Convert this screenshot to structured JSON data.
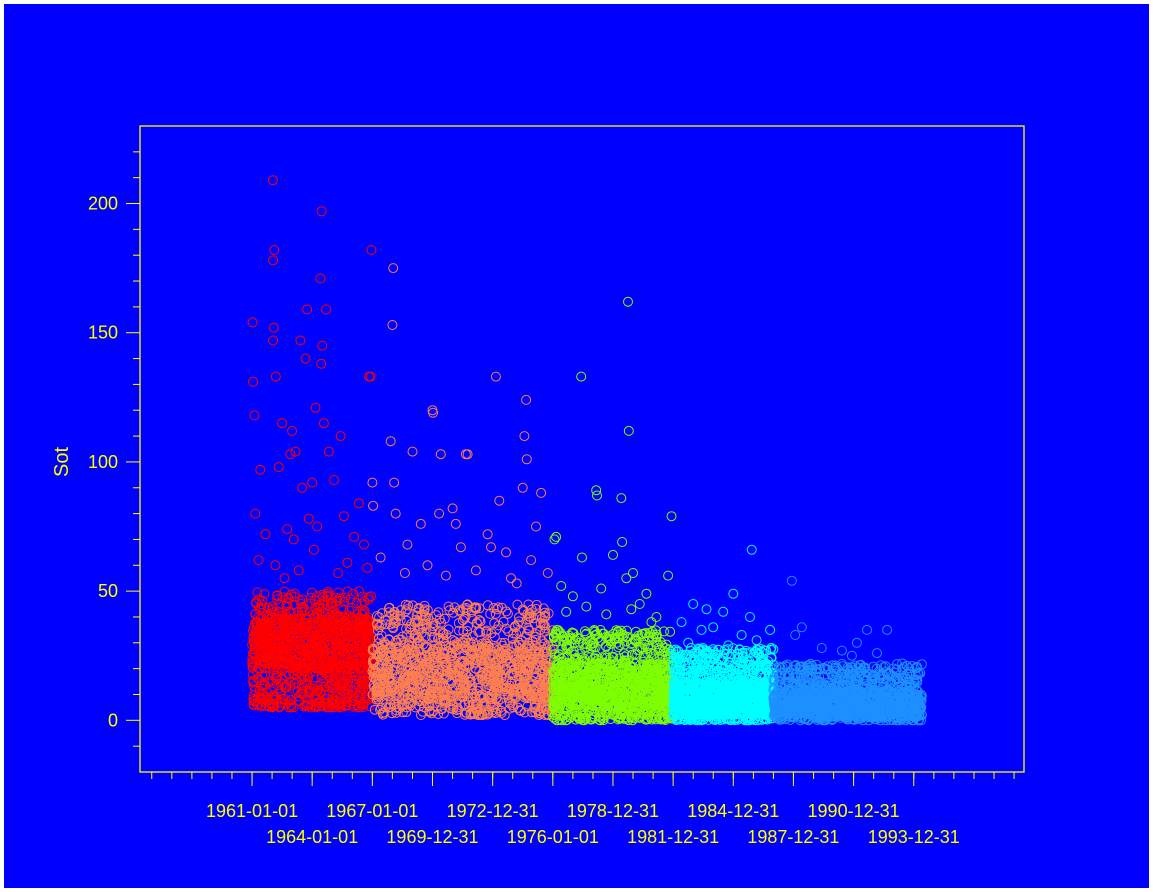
{
  "chart_data": {
    "type": "scatter",
    "title": "",
    "xlabel": "",
    "ylabel": "Sot",
    "xlim": [
      "1955-06-01",
      "1999-07-01"
    ],
    "ylim": [
      -20,
      230
    ],
    "y_ticks": [
      0,
      50,
      100,
      150,
      200
    ],
    "y_tick_labels": [
      "0",
      "50",
      "100",
      "150",
      "200"
    ],
    "x_tick_labels_row1": [
      "1961-01-01",
      "1967-01-01",
      "1972-12-31",
      "1978-12-31",
      "1984-12-31",
      "1990-12-31"
    ],
    "x_tick_labels_row2": [
      "1964-01-01",
      "1969-12-31",
      "1976-01-01",
      "1981-12-31",
      "1987-12-31",
      "1993-12-31"
    ],
    "x_minor_tick_start_year": 1956,
    "x_minor_tick_end_year": 1999,
    "grid": false,
    "legend": "none",
    "marker": "open-circle",
    "colors": {
      "background": "#0000ff",
      "axis": "#ffff00",
      "text": "#ffff00"
    },
    "series": [
      {
        "color": "#ff0000",
        "x_range": [
          "1961-01-01",
          "1967-01-01"
        ],
        "points": [
          [
            "1962-01-15",
            209
          ],
          [
            "1964-06-20",
            197
          ],
          [
            "1962-02-10",
            182
          ],
          [
            "1966-12-15",
            182
          ],
          [
            "1962-01-20",
            178
          ],
          [
            "1964-06-01",
            171
          ],
          [
            "1963-10-01",
            159
          ],
          [
            "1964-09-10",
            159
          ],
          [
            "1961-01-10",
            154
          ],
          [
            "1962-02-01",
            152
          ],
          [
            "1961-01-20",
            131
          ],
          [
            "1962-01-20",
            147
          ],
          [
            "1963-06-01",
            147
          ],
          [
            "1963-09-01",
            140
          ],
          [
            "1964-07-01",
            145
          ],
          [
            "1964-06-15",
            138
          ],
          [
            "1966-11-01",
            133
          ],
          [
            "1966-12-01",
            133
          ],
          [
            "1962-03-10",
            133
          ],
          [
            "1961-02-15",
            118
          ],
          [
            "1962-07-01",
            115
          ],
          [
            "1963-01-01",
            112
          ],
          [
            "1964-03-01",
            121
          ],
          [
            "1964-08-01",
            115
          ],
          [
            "1965-06-01",
            110
          ],
          [
            "1962-12-01",
            103
          ],
          [
            "1963-03-01",
            104
          ],
          [
            "1964-11-01",
            104
          ],
          [
            "1961-06-01",
            97
          ],
          [
            "1962-05-01",
            98
          ],
          [
            "1963-07-01",
            90
          ],
          [
            "1964-01-01",
            92
          ],
          [
            "1965-02-01",
            93
          ],
          [
            "1966-05-01",
            84
          ],
          [
            "1961-03-01",
            80
          ],
          [
            "1961-09-01",
            72
          ],
          [
            "1962-10-01",
            74
          ],
          [
            "1963-02-01",
            70
          ],
          [
            "1963-11-01",
            78
          ],
          [
            "1964-04-01",
            75
          ],
          [
            "1965-08-01",
            79
          ],
          [
            "1966-02-01",
            71
          ],
          [
            "1966-08-01",
            68
          ],
          [
            "1961-05-01",
            62
          ],
          [
            "1962-03-01",
            60
          ],
          [
            "1963-05-01",
            58
          ],
          [
            "1964-02-01",
            66
          ],
          [
            "1965-10-01",
            61
          ],
          [
            "1966-10-01",
            59
          ],
          [
            "1962-08-15",
            55
          ],
          [
            "1965-04-15",
            57
          ]
        ],
        "dense_y_ranges": [
          [
            5,
            50
          ],
          [
            20,
            40
          ]
        ]
      },
      {
        "color": "#ff7f50",
        "x_range": [
          "1967-01-01",
          "1976-01-01"
        ],
        "points": [
          [
            "1968-01-15",
            175
          ],
          [
            "1968-01-01",
            153
          ],
          [
            "1973-03-01",
            133
          ],
          [
            "1974-09-01",
            124
          ],
          [
            "1970-01-01",
            120
          ],
          [
            "1970-01-10",
            119
          ],
          [
            "1974-08-01",
            110
          ],
          [
            "1967-12-01",
            108
          ],
          [
            "1969-01-01",
            104
          ],
          [
            "1971-09-01",
            103
          ],
          [
            "1970-06-01",
            103
          ],
          [
            "1971-10-01",
            103
          ],
          [
            "1974-09-15",
            101
          ],
          [
            "1967-01-01",
            92
          ],
          [
            "1968-02-01",
            92
          ],
          [
            "1974-07-01",
            90
          ],
          [
            "1973-05-01",
            85
          ],
          [
            "1971-01-01",
            82
          ],
          [
            "1975-06-01",
            88
          ],
          [
            "1967-01-15",
            83
          ],
          [
            "1968-03-01",
            80
          ],
          [
            "1970-05-01",
            80
          ],
          [
            "1969-06-01",
            76
          ],
          [
            "1971-03-01",
            76
          ],
          [
            "1972-10-01",
            72
          ],
          [
            "1975-03-01",
            75
          ],
          [
            "1968-10-01",
            68
          ],
          [
            "1971-06-01",
            67
          ],
          [
            "1972-12-01",
            67
          ],
          [
            "1973-09-01",
            65
          ],
          [
            "1974-12-01",
            62
          ],
          [
            "1969-10-01",
            60
          ],
          [
            "1972-03-01",
            58
          ],
          [
            "1975-10-01",
            57
          ],
          [
            "1967-06-01",
            63
          ],
          [
            "1970-09-01",
            56
          ],
          [
            "1973-12-01",
            55
          ],
          [
            "1968-08-15",
            57
          ],
          [
            "1974-03-15",
            53
          ]
        ],
        "dense_y_ranges": [
          [
            2,
            45
          ],
          [
            8,
            30
          ]
        ]
      },
      {
        "color": "#7fff00",
        "x_range": [
          "1976-01-01",
          "1982-01-01"
        ],
        "points": [
          [
            "1979-10-01",
            162
          ],
          [
            "1977-06-01",
            133
          ],
          [
            "1979-10-15",
            112
          ],
          [
            "1978-03-01",
            89
          ],
          [
            "1978-03-15",
            87
          ],
          [
            "1979-06-01",
            86
          ],
          [
            "1981-12-01",
            79
          ],
          [
            "1976-02-01",
            70
          ],
          [
            "1976-03-01",
            71
          ],
          [
            "1979-06-15",
            69
          ],
          [
            "1979-01-01",
            64
          ],
          [
            "1977-06-15",
            63
          ],
          [
            "1981-10-01",
            56
          ],
          [
            "1980-01-01",
            57
          ],
          [
            "1979-09-01",
            55
          ],
          [
            "1976-06-01",
            52
          ],
          [
            "1978-06-01",
            51
          ],
          [
            "1980-09-01",
            49
          ],
          [
            "1977-01-01",
            48
          ],
          [
            "1980-05-01",
            45
          ],
          [
            "1979-12-01",
            43
          ],
          [
            "1976-09-01",
            42
          ],
          [
            "1978-09-01",
            41
          ],
          [
            "1977-09-01",
            44
          ],
          [
            "1980-12-01",
            38
          ],
          [
            "1981-03-01",
            40
          ]
        ],
        "dense_y_ranges": [
          [
            0,
            35
          ],
          [
            5,
            22
          ]
        ]
      },
      {
        "color": "#00ffff",
        "x_range": [
          "1982-01-01",
          "1987-01-01"
        ],
        "points": [
          [
            "1985-12-01",
            66
          ],
          [
            "1985-01-01",
            49
          ],
          [
            "1983-01-01",
            45
          ],
          [
            "1983-09-01",
            43
          ],
          [
            "1984-07-01",
            42
          ],
          [
            "1985-11-01",
            40
          ],
          [
            "1986-11-01",
            35
          ],
          [
            "1982-06-01",
            38
          ],
          [
            "1984-01-01",
            36
          ],
          [
            "1983-06-01",
            35
          ],
          [
            "1985-06-01",
            33
          ],
          [
            "1982-10-01",
            30
          ],
          [
            "1986-03-01",
            31
          ],
          [
            "1984-10-01",
            29
          ]
        ],
        "dense_y_ranges": [
          [
            0,
            28
          ],
          [
            2,
            15
          ]
        ]
      },
      {
        "color": "#1e90ff",
        "x_range": [
          "1987-01-01",
          "1994-06-01"
        ],
        "points": [
          [
            "1987-12-01",
            54
          ],
          [
            "1988-06-01",
            36
          ],
          [
            "1991-09-01",
            35
          ],
          [
            "1992-09-01",
            35
          ],
          [
            "1989-06-01",
            28
          ],
          [
            "1990-06-01",
            27
          ],
          [
            "1991-03-01",
            30
          ],
          [
            "1993-06-01",
            22
          ],
          [
            "1993-12-01",
            21
          ],
          [
            "1988-02-01",
            33
          ],
          [
            "1992-03-01",
            26
          ],
          [
            "1990-12-01",
            25
          ]
        ],
        "dense_y_ranges": [
          [
            0,
            22
          ],
          [
            1,
            12
          ]
        ]
      }
    ]
  }
}
